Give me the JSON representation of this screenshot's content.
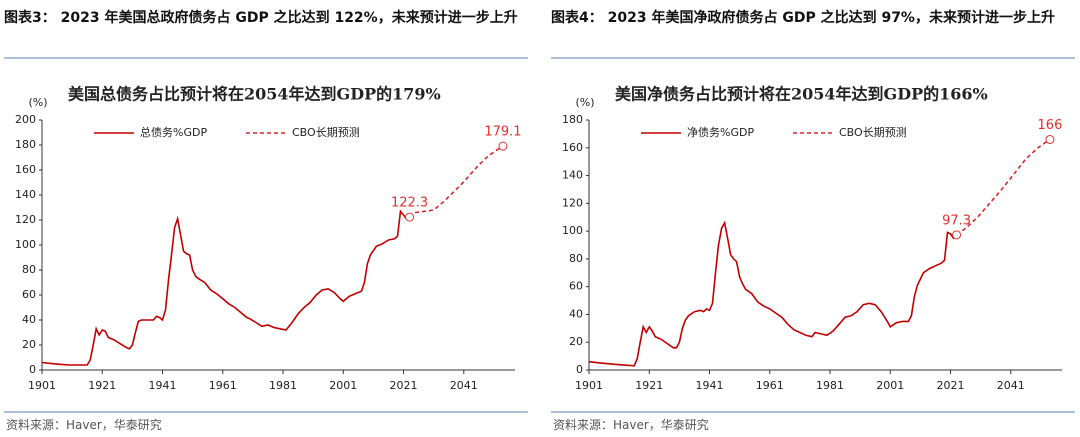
{
  "chart_data": [
    {
      "type": "line",
      "figure_title": "图表3：  2023 年美国总政府债务占 GDP 之比达到 122%，未来预计进一步上升",
      "title": "美国总债务占比预计将在2054年达到GDP的179%",
      "y_label": "(%)",
      "source": "资料来源：Haver，华泰研究",
      "xlim": [
        1901,
        2058
      ],
      "xticks": [
        1901,
        1921,
        1941,
        1961,
        1981,
        2001,
        2021,
        2041
      ],
      "ylim": [
        0,
        200
      ],
      "yticks": [
        0,
        20,
        40,
        60,
        80,
        100,
        120,
        140,
        160,
        180,
        200
      ],
      "grid": false,
      "series": [
        {
          "name": "总债务%GDP",
          "color": "#c00000",
          "dashed": false,
          "x": [
            1901,
            1905,
            1910,
            1915,
            1916,
            1917,
            1918,
            1919,
            1920,
            1921,
            1922,
            1923,
            1925,
            1927,
            1929,
            1930,
            1931,
            1932,
            1933,
            1934,
            1936,
            1938,
            1939,
            1940,
            1941,
            1942,
            1943,
            1944,
            1945,
            1946,
            1947,
            1948,
            1949,
            1950,
            1951,
            1952,
            1953,
            1955,
            1957,
            1959,
            1961,
            1963,
            1965,
            1967,
            1969,
            1970,
            1972,
            1974,
            1976,
            1978,
            1980,
            1982,
            1984,
            1986,
            1988,
            1990,
            1992,
            1994,
            1996,
            1998,
            2000,
            2001,
            2003,
            2005,
            2007,
            2008,
            2009,
            2010,
            2012,
            2014,
            2016,
            2018,
            2019,
            2020,
            2021,
            2022,
            2023
          ],
          "values": [
            6,
            5,
            4,
            4,
            4,
            8,
            20,
            33,
            28,
            32,
            31,
            26,
            24,
            21,
            18,
            17,
            20,
            30,
            39,
            40,
            40,
            40,
            43,
            42,
            40,
            48,
            72,
            92,
            114,
            121,
            108,
            95,
            93,
            92,
            80,
            75,
            73,
            70,
            64,
            61,
            57,
            53,
            50,
            46,
            42,
            41,
            38,
            35,
            36,
            34,
            33,
            32,
            38,
            45,
            50,
            54,
            60,
            64,
            65,
            62,
            57,
            55,
            59,
            61,
            63,
            70,
            85,
            92,
            99,
            101,
            104,
            105,
            107,
            127,
            124,
            121,
            122.3
          ]
        },
        {
          "name": "CBO长期预测",
          "color": "#d9262c",
          "dashed": true,
          "x": [
            2023,
            2025,
            2028,
            2031,
            2034,
            2037,
            2040,
            2043,
            2046,
            2049,
            2052,
            2054
          ],
          "values": [
            122.3,
            126,
            127,
            128,
            134,
            141,
            148,
            156,
            164,
            171,
            176,
            179.1
          ]
        }
      ],
      "annotations": [
        {
          "x": 2023,
          "y": 122.3
        },
        {
          "x": 2054,
          "y": 179.1
        }
      ]
    },
    {
      "type": "line",
      "figure_title": "图表4：  2023 年美国净政府债务占 GDP 之比达到 97%，未来预计进一步上升",
      "title": "美国净债务占比预计将在2054年达到GDP的166%",
      "y_label": "(%)",
      "source": "资料来源：Haver，华泰研究",
      "xlim": [
        1901,
        2058
      ],
      "xticks": [
        1901,
        1921,
        1941,
        1961,
        1981,
        2001,
        2021,
        2041
      ],
      "ylim": [
        0,
        180
      ],
      "yticks": [
        0,
        20,
        40,
        60,
        80,
        100,
        120,
        140,
        160,
        180
      ],
      "grid": false,
      "series": [
        {
          "name": "净债务%GDP",
          "color": "#c00000",
          "dashed": false,
          "x": [
            1901,
            1905,
            1910,
            1916,
            1917,
            1918,
            1919,
            1920,
            1921,
            1922,
            1923,
            1925,
            1927,
            1929,
            1930,
            1931,
            1932,
            1933,
            1934,
            1936,
            1938,
            1939,
            1940,
            1941,
            1942,
            1943,
            1944,
            1945,
            1946,
            1947,
            1948,
            1949,
            1950,
            1951,
            1952,
            1953,
            1955,
            1957,
            1959,
            1961,
            1963,
            1965,
            1967,
            1969,
            1971,
            1973,
            1975,
            1976,
            1978,
            1980,
            1982,
            1984,
            1986,
            1988,
            1990,
            1992,
            1994,
            1996,
            1998,
            2000,
            2001,
            2003,
            2005,
            2007,
            2008,
            2009,
            2010,
            2012,
            2014,
            2016,
            2018,
            2019,
            2020,
            2021,
            2022,
            2023
          ],
          "values": [
            6,
            5,
            4,
            3,
            8,
            20,
            31,
            27,
            31,
            28,
            24,
            22,
            19,
            16,
            16,
            20,
            30,
            36,
            39,
            42,
            43,
            42,
            44,
            43,
            48,
            70,
            90,
            102,
            106,
            95,
            83,
            80,
            78,
            67,
            62,
            58,
            55,
            49,
            46,
            44,
            41,
            38,
            33,
            29,
            27,
            25,
            24,
            27,
            26,
            25,
            28,
            33,
            38,
            39,
            42,
            47,
            48,
            47,
            42,
            35,
            31,
            34,
            35,
            35,
            39,
            53,
            61,
            70,
            73,
            75,
            77,
            79,
            99,
            98,
            95,
            97.3
          ]
        },
        {
          "name": "CBO长期预测",
          "color": "#d9262c",
          "dashed": true,
          "x": [
            2023,
            2026,
            2030,
            2034,
            2038,
            2042,
            2046,
            2050,
            2054
          ],
          "values": [
            97.3,
            102,
            110,
            120,
            130,
            141,
            152,
            160,
            166
          ]
        }
      ],
      "annotations": [
        {
          "x": 2023,
          "y": 97.3
        },
        {
          "x": 2054,
          "y": 166
        }
      ]
    }
  ]
}
